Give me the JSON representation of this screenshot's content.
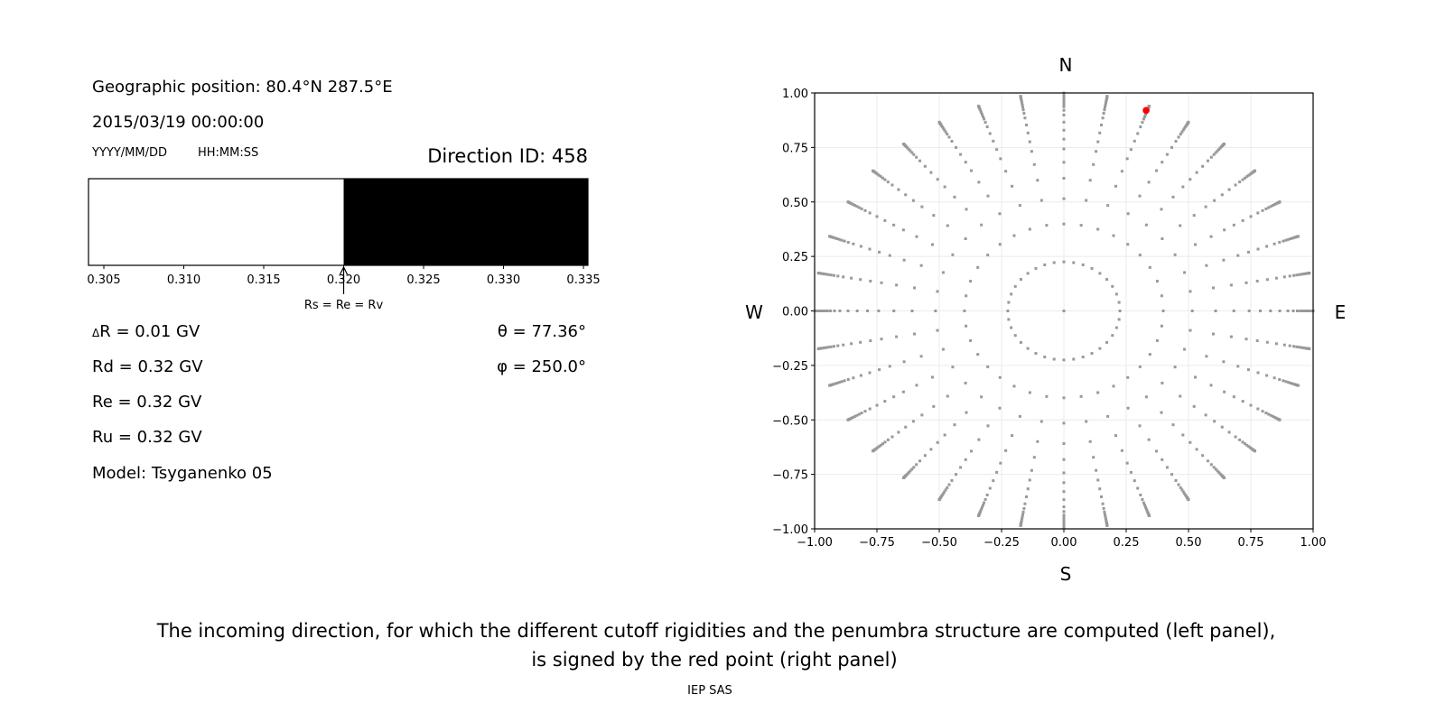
{
  "left_panel": {
    "geo_position": "Geographic position: 80.4°N 287.5°E",
    "datetime": "2015/03/19 00:00:00",
    "date_format": "YYYY/MM/DD",
    "time_format": "HH:MM:SS",
    "direction_id": "Direction ID: 458",
    "penumbra_bar": {
      "xlim": [
        0.30404,
        0.33528
      ],
      "ticks": [
        "0.305",
        "0.310",
        "0.315",
        "0.320",
        "0.325",
        "0.330",
        "0.335"
      ],
      "allowed_from": 0.32,
      "forbidden_color": "#ffffff",
      "allowed_color": "#000000",
      "arrow_at": 0.32,
      "arrow_label": "Rs = Re = Rv"
    },
    "delta_symbol": "Δ",
    "delta_r": "R = 0.01 GV",
    "rd": "Rd = 0.32 GV",
    "re": "Re = 0.32 GV",
    "ru": "Ru = 0.32 GV",
    "model": "Model: Tsyganenko 05",
    "theta": "θ = 77.36°",
    "phi": "φ = 250.0°"
  },
  "chart_data": {
    "type": "scatter",
    "xlim": [
      -1,
      1
    ],
    "ylim": [
      -1,
      1
    ],
    "xticks": [
      "−1.00",
      "−0.75",
      "−0.50",
      "−0.25",
      "0.00",
      "0.25",
      "0.50",
      "0.75",
      "1.00"
    ],
    "yticks": [
      "−1.00",
      "−0.75",
      "−0.50",
      "−0.25",
      "0.00",
      "0.25",
      "0.50",
      "0.75",
      "1.00"
    ],
    "grid": true,
    "compass": {
      "north": "N",
      "south": "S",
      "west": "W",
      "east": "E"
    },
    "directions": {
      "zenith_deg": [
        0,
        13,
        23.5,
        31,
        37.5,
        43,
        48,
        52,
        56,
        60,
        64,
        67,
        69.5,
        71.5,
        73.5,
        75.5,
        77.5,
        79.5,
        81.5,
        83.5,
        85.5,
        88,
        90
      ],
      "azimuth_step_deg": 10,
      "color": "#999999"
    },
    "selected_direction": {
      "x": 0.33,
      "y": 0.92,
      "color": "#ff0000"
    }
  },
  "caption": {
    "line1": "The incoming direction, for which the different cutoff rigidities and the penumbra structure are computed (left panel),",
    "line2": "is signed by the red point (right panel)"
  },
  "credit": "IEP SAS"
}
